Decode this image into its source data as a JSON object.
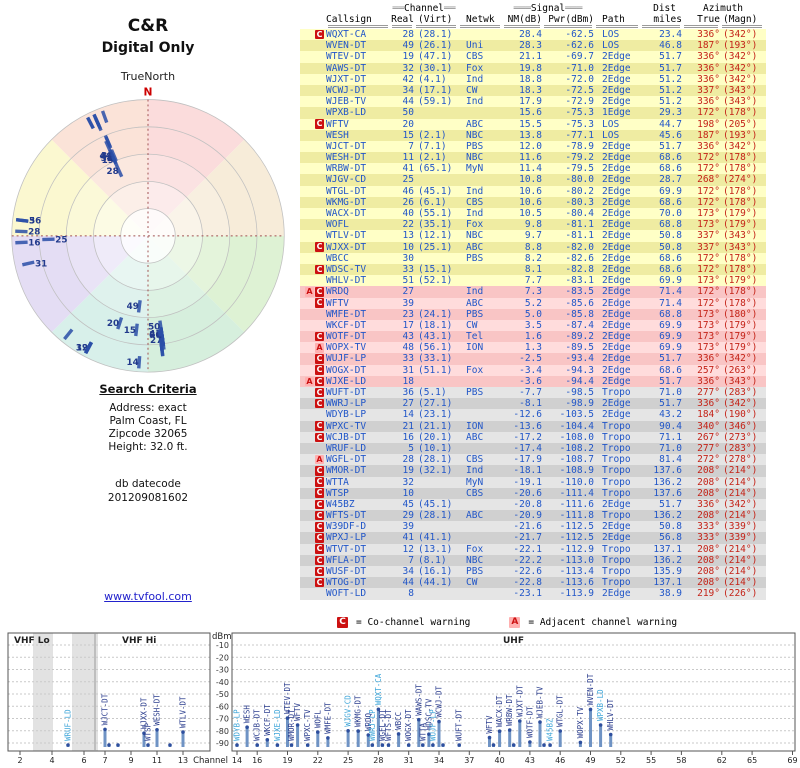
{
  "left_panel": {
    "title_line1": "C&R",
    "title_line2": "Digital Only",
    "true_north_label": "TrueNorth",
    "search_criteria": {
      "heading": "Search Criteria",
      "lines": [
        "Address: exact",
        "Palm Coast, FL",
        "Zipcode 32065",
        "Height: 32.0 ft."
      ],
      "datecode_label": "db datecode",
      "datecode": "201209081602"
    },
    "link": "www.tvfool.com"
  },
  "legend": {
    "co_symbol": "C",
    "co_text": "= Co-channel warning",
    "adj_symbol": "A",
    "adj_text": "= Adjacent channel warning"
  },
  "table": {
    "group_headers": {
      "channel_deco": "══",
      "channel": "Channel",
      "signal_deco": "═══",
      "signal": "Signal",
      "dist": "Dist",
      "azimuth": "Azimuth"
    },
    "columns": [
      "Callsign",
      "Real",
      "(Virt)",
      "Netwk",
      "NM(dB)",
      "Pwr(dBm)",
      "Path",
      "miles",
      "True",
      "(Magn)"
    ],
    "rows": [
      {
        "callsign": "WQXT-CA",
        "real": "28",
        "virt": "(28.1)",
        "net": "",
        "nm": "28.4",
        "pwr": "-62.5",
        "path": "LOS",
        "miles": "23.4",
        "azt": "336°",
        "azm": "(342°)",
        "warn": "C",
        "band": "y",
        "rl": 1,
        "lp": 1
      },
      {
        "callsign": "WVEN-DT",
        "real": "49",
        "virt": "(26.1)",
        "net": "Uni",
        "nm": "28.3",
        "pwr": "-62.6",
        "path": "LOS",
        "miles": "46.8",
        "azt": "187°",
        "azm": "(193°)",
        "warn": "",
        "band": "y",
        "rl": 1
      },
      {
        "callsign": "WTEV-DT",
        "real": "19",
        "virt": "(47.1)",
        "net": "CBS",
        "nm": "21.1",
        "pwr": "-69.7",
        "path": "2Edge",
        "miles": "51.7",
        "azt": "336°",
        "azm": "(342°)",
        "warn": "",
        "band": "y",
        "rl": 1
      },
      {
        "callsign": "WAWS-DT",
        "real": "32",
        "virt": "(30.1)",
        "net": "Fox",
        "nm": "19.8",
        "pwr": "-71.0",
        "path": "2Edge",
        "miles": "51.7",
        "azt": "336°",
        "azm": "(342°)",
        "warn": "",
        "band": "y",
        "rl": 1
      },
      {
        "callsign": "WJXT-DT",
        "real": "42",
        "virt": "(4.1)",
        "net": "Ind",
        "nm": "18.8",
        "pwr": "-72.0",
        "path": "2Edge",
        "miles": "51.2",
        "azt": "336°",
        "azm": "(342°)",
        "warn": "",
        "band": "y",
        "rl": 1
      },
      {
        "callsign": "WCWJ-DT",
        "real": "34",
        "virt": "(17.1)",
        "net": "CW",
        "nm": "18.3",
        "pwr": "-72.5",
        "path": "2Edge",
        "miles": "51.2",
        "azt": "337°",
        "azm": "(343°)",
        "warn": "",
        "band": "y",
        "rl": 1
      },
      {
        "callsign": "WJEB-TV",
        "real": "44",
        "virt": "(59.1)",
        "net": "Ind",
        "nm": "17.9",
        "pwr": "-72.9",
        "path": "2Edge",
        "miles": "51.2",
        "azt": "336°",
        "azm": "(343°)",
        "warn": "",
        "band": "y",
        "rl": 1
      },
      {
        "callsign": "WPXB-LD",
        "real": "50",
        "virt": "",
        "net": "",
        "nm": "15.6",
        "pwr": "-75.3",
        "path": "1Edge",
        "miles": "29.3",
        "azt": "172°",
        "azm": "(178°)",
        "warn": "",
        "band": "y",
        "rl": 1,
        "lp": 1
      },
      {
        "callsign": "WFTV",
        "real": "20",
        "virt": "",
        "net": "ABC",
        "nm": "15.5",
        "pwr": "-75.3",
        "path": "LOS",
        "miles": "44.7",
        "azt": "198°",
        "azm": "(205°)",
        "warn": "C",
        "band": "y",
        "rl": 1
      },
      {
        "callsign": "WESH",
        "real": "15",
        "virt": "(2.1)",
        "net": "NBC",
        "nm": "13.8",
        "pwr": "-77.1",
        "path": "LOS",
        "miles": "45.6",
        "azt": "187°",
        "azm": "(193°)",
        "warn": "",
        "band": "y",
        "rl": 1
      },
      {
        "callsign": "WJCT-DT",
        "real": "7",
        "virt": "(7.1)",
        "net": "PBS",
        "nm": "12.0",
        "pwr": "-78.9",
        "path": "2Edge",
        "miles": "51.7",
        "azt": "336°",
        "azm": "(342°)",
        "warn": "",
        "band": "y"
      },
      {
        "callsign": "WESH-DT",
        "real": "11",
        "virt": "(2.1)",
        "net": "NBC",
        "nm": "11.6",
        "pwr": "-79.2",
        "path": "2Edge",
        "miles": "68.6",
        "azt": "172°",
        "azm": "(178°)",
        "warn": "",
        "band": "y"
      },
      {
        "callsign": "WRBW-DT",
        "real": "41",
        "virt": "(65.1)",
        "net": "MyN",
        "nm": "11.4",
        "pwr": "-79.5",
        "path": "2Edge",
        "miles": "68.6",
        "azt": "172°",
        "azm": "(178°)",
        "warn": "",
        "band": "y",
        "rl": 1
      },
      {
        "callsign": "WJGV-CD",
        "real": "25",
        "virt": "",
        "net": "",
        "nm": "10.8",
        "pwr": "-80.0",
        "path": "2Edge",
        "miles": "28.7",
        "azt": "268°",
        "azm": "(274°)",
        "warn": "",
        "band": "y",
        "rl": 1,
        "lp": 1
      },
      {
        "callsign": "WTGL-DT",
        "real": "46",
        "virt": "(45.1)",
        "net": "Ind",
        "nm": "10.6",
        "pwr": "-80.2",
        "path": "2Edge",
        "miles": "69.9",
        "azt": "172°",
        "azm": "(178°)",
        "warn": "",
        "band": "y",
        "rl": 1
      },
      {
        "callsign": "WKMG-DT",
        "real": "26",
        "virt": "(6.1)",
        "net": "CBS",
        "nm": "10.6",
        "pwr": "-80.3",
        "path": "2Edge",
        "miles": "68.6",
        "azt": "172°",
        "azm": "(178°)",
        "warn": "",
        "band": "y",
        "rl": 1
      },
      {
        "callsign": "WACX-DT",
        "real": "40",
        "virt": "(55.1)",
        "net": "Ind",
        "nm": "10.5",
        "pwr": "-80.4",
        "path": "2Edge",
        "miles": "70.0",
        "azt": "173°",
        "azm": "(179°)",
        "warn": "",
        "band": "y"
      },
      {
        "callsign": "WOFL",
        "real": "22",
        "virt": "(35.1)",
        "net": "Fox",
        "nm": "9.8",
        "pwr": "-81.1",
        "path": "2Edge",
        "miles": "68.8",
        "azt": "173°",
        "azm": "(179°)",
        "warn": "",
        "band": "y"
      },
      {
        "callsign": "WTLV-DT",
        "real": "13",
        "virt": "(12.1)",
        "net": "NBC",
        "nm": "9.7",
        "pwr": "-81.1",
        "path": "2Edge",
        "miles": "50.8",
        "azt": "337°",
        "azm": "(343°)",
        "warn": "",
        "band": "y"
      },
      {
        "callsign": "WJXX-DT",
        "real": "10",
        "virt": "(25.1)",
        "net": "ABC",
        "nm": "8.8",
        "pwr": "-82.0",
        "path": "2Edge",
        "miles": "50.8",
        "azt": "337°",
        "azm": "(343°)",
        "warn": "C",
        "band": "y"
      },
      {
        "callsign": "WBCC",
        "real": "30",
        "virt": "",
        "net": "PBS",
        "nm": "8.2",
        "pwr": "-82.6",
        "path": "2Edge",
        "miles": "68.6",
        "azt": "172°",
        "azm": "(178°)",
        "warn": "",
        "band": "y"
      },
      {
        "callsign": "WDSC-TV",
        "real": "33",
        "virt": "(15.1)",
        "net": "",
        "nm": "8.1",
        "pwr": "-82.8",
        "path": "2Edge",
        "miles": "68.6",
        "azt": "172°",
        "azm": "(178°)",
        "warn": "C",
        "band": "y"
      },
      {
        "callsign": "WHLV-DT",
        "real": "51",
        "virt": "(52.1)",
        "net": "",
        "nm": "7.7",
        "pwr": "-83.1",
        "path": "2Edge",
        "miles": "69.9",
        "azt": "173°",
        "azm": "(179°)",
        "warn": "",
        "band": "y"
      },
      {
        "callsign": "WRDQ",
        "real": "27",
        "virt": "",
        "net": "Ind",
        "nm": "7.3",
        "pwr": "-83.5",
        "path": "2Edge",
        "miles": "71.4",
        "azt": "172°",
        "azm": "(178°)",
        "warn": "AC",
        "band": "p",
        "rl": 1
      },
      {
        "callsign": "WFTV",
        "real": "39",
        "virt": "",
        "net": "ABC",
        "nm": "5.2",
        "pwr": "-85.6",
        "path": "2Edge",
        "miles": "71.4",
        "azt": "172°",
        "azm": "(178°)",
        "warn": "C",
        "band": "p"
      },
      {
        "callsign": "WMFE-DT",
        "real": "23",
        "virt": "(24.1)",
        "net": "PBS",
        "nm": "5.0",
        "pwr": "-85.8",
        "path": "2Edge",
        "miles": "68.8",
        "azt": "173°",
        "azm": "(180°)",
        "warn": "",
        "band": "p"
      },
      {
        "callsign": "WKCF-DT",
        "real": "17",
        "virt": "(18.1)",
        "net": "CW",
        "nm": "3.5",
        "pwr": "-87.4",
        "path": "2Edge",
        "miles": "69.9",
        "azt": "173°",
        "azm": "(179°)",
        "warn": "",
        "band": "p"
      },
      {
        "callsign": "WOTF-DT",
        "real": "43",
        "virt": "(43.1)",
        "net": "Tel",
        "nm": "1.6",
        "pwr": "-89.2",
        "path": "2Edge",
        "miles": "69.9",
        "azt": "173°",
        "azm": "(179°)",
        "warn": "C",
        "band": "p"
      },
      {
        "callsign": "WOPX-TV",
        "real": "48",
        "virt": "(56.1)",
        "net": "ION",
        "nm": "1.3",
        "pwr": "-89.5",
        "path": "2Edge",
        "miles": "69.9",
        "azt": "173°",
        "azm": "(179°)",
        "warn": "A",
        "band": "p"
      },
      {
        "callsign": "WUJF-LP",
        "real": "33",
        "virt": "(33.1)",
        "net": "",
        "nm": "-2.5",
        "pwr": "-93.4",
        "path": "2Edge",
        "miles": "51.7",
        "azt": "336°",
        "azm": "(342°)",
        "warn": "C",
        "band": "p",
        "lp": 1
      },
      {
        "callsign": "WOGX-DT",
        "real": "31",
        "virt": "(51.1)",
        "net": "Fox",
        "nm": "-3.4",
        "pwr": "-94.3",
        "path": "2Edge",
        "miles": "68.6",
        "azt": "257°",
        "azm": "(263°)",
        "warn": "C",
        "band": "p",
        "rl": 1
      },
      {
        "callsign": "WJXE-LD",
        "real": "18",
        "virt": "",
        "net": "",
        "nm": "-3.6",
        "pwr": "-94.4",
        "path": "2Edge",
        "miles": "51.7",
        "azt": "336°",
        "azm": "(343°)",
        "warn": "AC",
        "band": "p",
        "lp": 1
      },
      {
        "callsign": "WUFT-DT",
        "real": "36",
        "virt": "(5.1)",
        "net": "PBS",
        "nm": "-7.7",
        "pwr": "-98.5",
        "path": "Tropo",
        "miles": "71.0",
        "azt": "277°",
        "azm": "(283°)",
        "warn": "C",
        "band": "g",
        "rl": 1
      },
      {
        "callsign": "WWRJ-LP",
        "real": "27",
        "virt": "(27.1)",
        "net": "",
        "nm": "-8.1",
        "pwr": "-98.9",
        "path": "2Edge",
        "miles": "51.7",
        "azt": "336°",
        "azm": "(342°)",
        "warn": "C",
        "band": "g",
        "lp": 1
      },
      {
        "callsign": "WDYB-LP",
        "real": "14",
        "virt": "(23.1)",
        "net": "",
        "nm": "-12.6",
        "pwr": "-103.5",
        "path": "2Edge",
        "miles": "43.2",
        "azt": "184°",
        "azm": "(190°)",
        "warn": "",
        "band": "g",
        "rl": 1,
        "lp": 1
      },
      {
        "callsign": "WPXC-TV",
        "real": "21",
        "virt": "(21.1)",
        "net": "ION",
        "nm": "-13.6",
        "pwr": "-104.4",
        "path": "Tropo",
        "miles": "90.4",
        "azt": "340°",
        "azm": "(346°)",
        "warn": "C",
        "band": "g"
      },
      {
        "callsign": "WCJB-DT",
        "real": "16",
        "virt": "(20.1)",
        "net": "ABC",
        "nm": "-17.2",
        "pwr": "-108.0",
        "path": "Tropo",
        "miles": "71.1",
        "azt": "267°",
        "azm": "(273°)",
        "warn": "C",
        "band": "g",
        "rl": 1
      },
      {
        "callsign": "WRUF-LD",
        "real": "5",
        "virt": "(10.1)",
        "net": "",
        "nm": "-17.4",
        "pwr": "-108.2",
        "path": "Tropo",
        "miles": "71.0",
        "azt": "277°",
        "azm": "(283°)",
        "warn": "",
        "band": "g",
        "rl": 1,
        "lp": 1
      },
      {
        "callsign": "WGFL-DT",
        "real": "28",
        "virt": "(28.1)",
        "net": "CBS",
        "nm": "-17.9",
        "pwr": "-108.7",
        "path": "Tropo",
        "miles": "81.4",
        "azt": "272°",
        "azm": "(278°)",
        "warn": "A",
        "band": "g",
        "rl": 1
      },
      {
        "callsign": "WMOR-DT",
        "real": "19",
        "virt": "(32.1)",
        "net": "Ind",
        "nm": "-18.1",
        "pwr": "-108.9",
        "path": "Tropo",
        "miles": "137.6",
        "azt": "208°",
        "azm": "(214°)",
        "warn": "C",
        "band": "g",
        "rl": 1
      },
      {
        "callsign": "WTTA",
        "real": "32",
        "virt": "",
        "net": "MyN",
        "nm": "-19.1",
        "pwr": "-110.0",
        "path": "Tropo",
        "miles": "136.2",
        "azt": "208°",
        "azm": "(214°)",
        "warn": "C",
        "band": "g",
        "rl": 1
      },
      {
        "callsign": "WTSP",
        "real": "10",
        "virt": "",
        "net": "CBS",
        "nm": "-20.6",
        "pwr": "-111.4",
        "path": "Tropo",
        "miles": "137.6",
        "azt": "208°",
        "azm": "(214°)",
        "warn": "C",
        "band": "g"
      },
      {
        "callsign": "W45BZ",
        "real": "45",
        "virt": "(45.1)",
        "net": "",
        "nm": "-20.8",
        "pwr": "-111.6",
        "path": "2Edge",
        "miles": "51.7",
        "azt": "336°",
        "azm": "(342°)",
        "warn": "C",
        "band": "g",
        "lp": 1
      },
      {
        "callsign": "WFTS-DT",
        "real": "29",
        "virt": "(28.1)",
        "net": "ABC",
        "nm": "-20.9",
        "pwr": "-111.8",
        "path": "Tropo",
        "miles": "136.2",
        "azt": "208°",
        "azm": "(214°)",
        "warn": "C",
        "band": "g"
      },
      {
        "callsign": "W39DF-D",
        "real": "39",
        "virt": "",
        "net": "",
        "nm": "-21.6",
        "pwr": "-112.5",
        "path": "2Edge",
        "miles": "50.8",
        "azt": "333°",
        "azm": "(339°)",
        "warn": "C",
        "band": "g",
        "lp": 1
      },
      {
        "callsign": "WPXJ-LP",
        "real": "41",
        "virt": "(41.1)",
        "net": "",
        "nm": "-21.7",
        "pwr": "-112.5",
        "path": "2Edge",
        "miles": "56.8",
        "azt": "333°",
        "azm": "(339°)",
        "warn": "C",
        "band": "g",
        "lp": 1
      },
      {
        "callsign": "WTVT-DT",
        "real": "12",
        "virt": "(13.1)",
        "net": "Fox",
        "nm": "-22.1",
        "pwr": "-112.9",
        "path": "Tropo",
        "miles": "137.1",
        "azt": "208°",
        "azm": "(214°)",
        "warn": "C",
        "band": "g"
      },
      {
        "callsign": "WFLA-DT",
        "real": "7",
        "virt": "(8.1)",
        "net": "NBC",
        "nm": "-22.2",
        "pwr": "-113.0",
        "path": "Tropo",
        "miles": "136.2",
        "azt": "208°",
        "azm": "(214°)",
        "warn": "C",
        "band": "g"
      },
      {
        "callsign": "WUSF-DT",
        "real": "34",
        "virt": "(16.1)",
        "net": "PBS",
        "nm": "-22.6",
        "pwr": "-113.4",
        "path": "Tropo",
        "miles": "135.9",
        "azt": "208°",
        "azm": "(214°)",
        "warn": "C",
        "band": "g"
      },
      {
        "callsign": "WTOG-DT",
        "real": "44",
        "virt": "(44.1)",
        "net": "CW",
        "nm": "-22.8",
        "pwr": "-113.6",
        "path": "Tropo",
        "miles": "137.1",
        "azt": "208°",
        "azm": "(214°)",
        "warn": "C",
        "band": "g"
      },
      {
        "callsign": "WOFT-LD",
        "real": "8",
        "virt": "",
        "net": "",
        "nm": "-23.1",
        "pwr": "-113.9",
        "path": "2Edge",
        "miles": "38.9",
        "azt": "219°",
        "azm": "(226°)",
        "warn": "",
        "band": "g",
        "lp": 1
      }
    ]
  },
  "chart_data": [
    {
      "type": "scatter",
      "name": "azimuth-radar",
      "title": "C&R Digital Only",
      "north_marker": "N",
      "north_label": "TrueNorth",
      "angle_field": "azt",
      "strength_field": "nm",
      "data_source": "table.rows",
      "note": "Polar plot of stations: angle = true azimuth, radius = weaker signal farther out; labels show real channel numbers"
    },
    {
      "type": "bar",
      "name": "rf-spectrum",
      "xlabel": "Channel",
      "ylabel": "dBm",
      "ylim": [
        -96,
        -5
      ],
      "y_ticks": [
        -10,
        -20,
        -30,
        -40,
        -50,
        -60,
        -70,
        -80,
        -90
      ],
      "band_vhf_lo": "VHF Lo",
      "band_vhf_hi": "VHF Hi",
      "band_uhf": "UHF",
      "vhf_ticks": [
        2,
        4,
        6,
        7,
        9,
        11,
        13
      ],
      "uhf_ticks": [
        14,
        16,
        19,
        22,
        25,
        28,
        31,
        34,
        37,
        40,
        43,
        46,
        49,
        52,
        55,
        58,
        62,
        65,
        69
      ],
      "x_field": "real",
      "y_field": "pwr",
      "data_source": "table.rows"
    }
  ]
}
